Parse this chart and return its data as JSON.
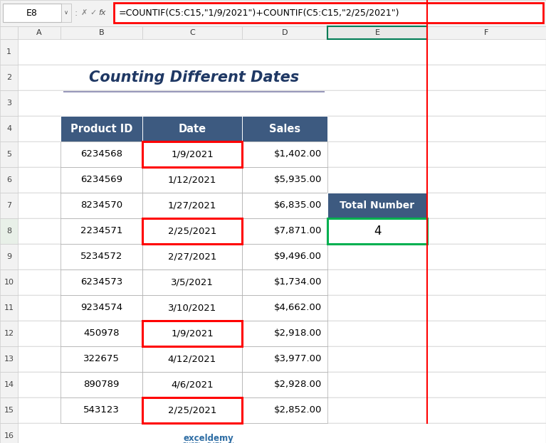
{
  "title": "Counting Different Dates",
  "formula_bar_text": "=COUNTIF(C5:C15,\"1/9/2021\")+COUNTIF(C5:C15,\"2/25/2021\")",
  "cell_ref": "E8",
  "headers": [
    "Product ID",
    "Date",
    "Sales"
  ],
  "rows": [
    [
      "6234568",
      "1/9/2021",
      "$1,402.00"
    ],
    [
      "6234569",
      "1/12/2021",
      "$5,935.00"
    ],
    [
      "8234570",
      "1/27/2021",
      "$6,835.00"
    ],
    [
      "2234571",
      "2/25/2021",
      "$7,871.00"
    ],
    [
      "5234572",
      "2/27/2021",
      "$9,496.00"
    ],
    [
      "6234573",
      "3/5/2021",
      "$1,734.00"
    ],
    [
      "9234574",
      "3/10/2021",
      "$4,662.00"
    ],
    [
      "450978",
      "1/9/2021",
      "$2,918.00"
    ],
    [
      "322675",
      "4/12/2021",
      "$3,977.00"
    ],
    [
      "890789",
      "4/6/2021",
      "$2,928.00"
    ],
    [
      "543123",
      "2/25/2021",
      "$2,852.00"
    ]
  ],
  "red_border_rows": [
    0,
    3,
    7,
    10
  ],
  "col_e_header": "Total Number",
  "col_e_value": "4",
  "header_bg": "#3D5A80",
  "header_text_color": "#FFFFFF",
  "red_border_color": "#FF0000",
  "col_e_header_bg": "#3D5A80",
  "title_color": "#1F3864",
  "formula_bar_border": "#FF0000",
  "col_e_green_border": "#00B050",
  "background": "#FFFFFF",
  "col_A_label_bg": "#E8E8E8",
  "row_num_selected_bg": "#E8E8E8",
  "exceldemy_color": "#2E6DA4"
}
